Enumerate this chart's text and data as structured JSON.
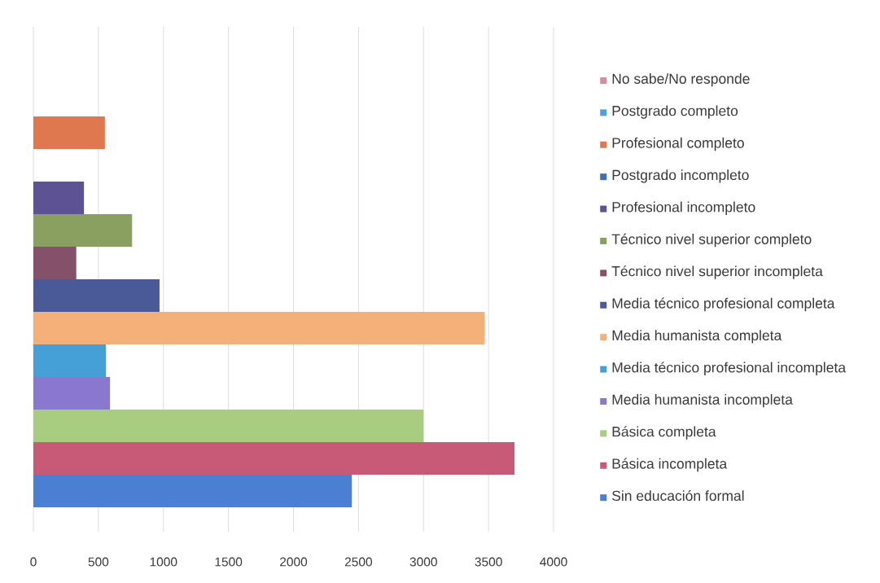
{
  "chart_data": {
    "type": "bar",
    "orientation": "horizontal",
    "categories": [
      null
    ],
    "series": [
      {
        "name": "Sin educación formal",
        "color": "#4a7fd4",
        "values": [
          2450
        ]
      },
      {
        "name": "Básica incompleta",
        "color": "#c85a78",
        "values": [
          3700
        ]
      },
      {
        "name": "Básica completa",
        "color": "#a8cc80",
        "values": [
          3000
        ]
      },
      {
        "name": "Media humanista incompleta",
        "color": "#8a78d0",
        "values": [
          590
        ]
      },
      {
        "name": "Media técnico profesional incompleta",
        "color": "#45a0d8",
        "values": [
          560
        ]
      },
      {
        "name": "Media humanista completa",
        "color": "#f5b07a",
        "values": [
          3470
        ]
      },
      {
        "name": "Media técnico profesional completa",
        "color": "#4a5a98",
        "values": [
          970
        ]
      },
      {
        "name": "Técnico nivel superior incompleta",
        "color": "#85506a",
        "values": [
          330
        ]
      },
      {
        "name": "Técnico nivel superior completo",
        "color": "#8aa060",
        "values": [
          760
        ]
      },
      {
        "name": "Profesional incompleto",
        "color": "#5c5294",
        "values": [
          390
        ]
      },
      {
        "name": "Postgrado incompleto",
        "color": "#3d6fad",
        "values": [
          0
        ]
      },
      {
        "name": "Profesional completo",
        "color": "#e0784f",
        "values": [
          550
        ]
      },
      {
        "name": "Postgrado completo",
        "color": "#4f9fe6",
        "values": [
          0
        ]
      },
      {
        "name": "No sabe/No responde",
        "color": "#d88aa0",
        "values": [
          0
        ]
      }
    ],
    "xlim": [
      0,
      4000
    ],
    "xticks": [
      0,
      500,
      1000,
      1500,
      2000,
      2500,
      3000,
      3500,
      4000
    ],
    "grid": "x",
    "legend": "right",
    "tick_labels": "x"
  }
}
